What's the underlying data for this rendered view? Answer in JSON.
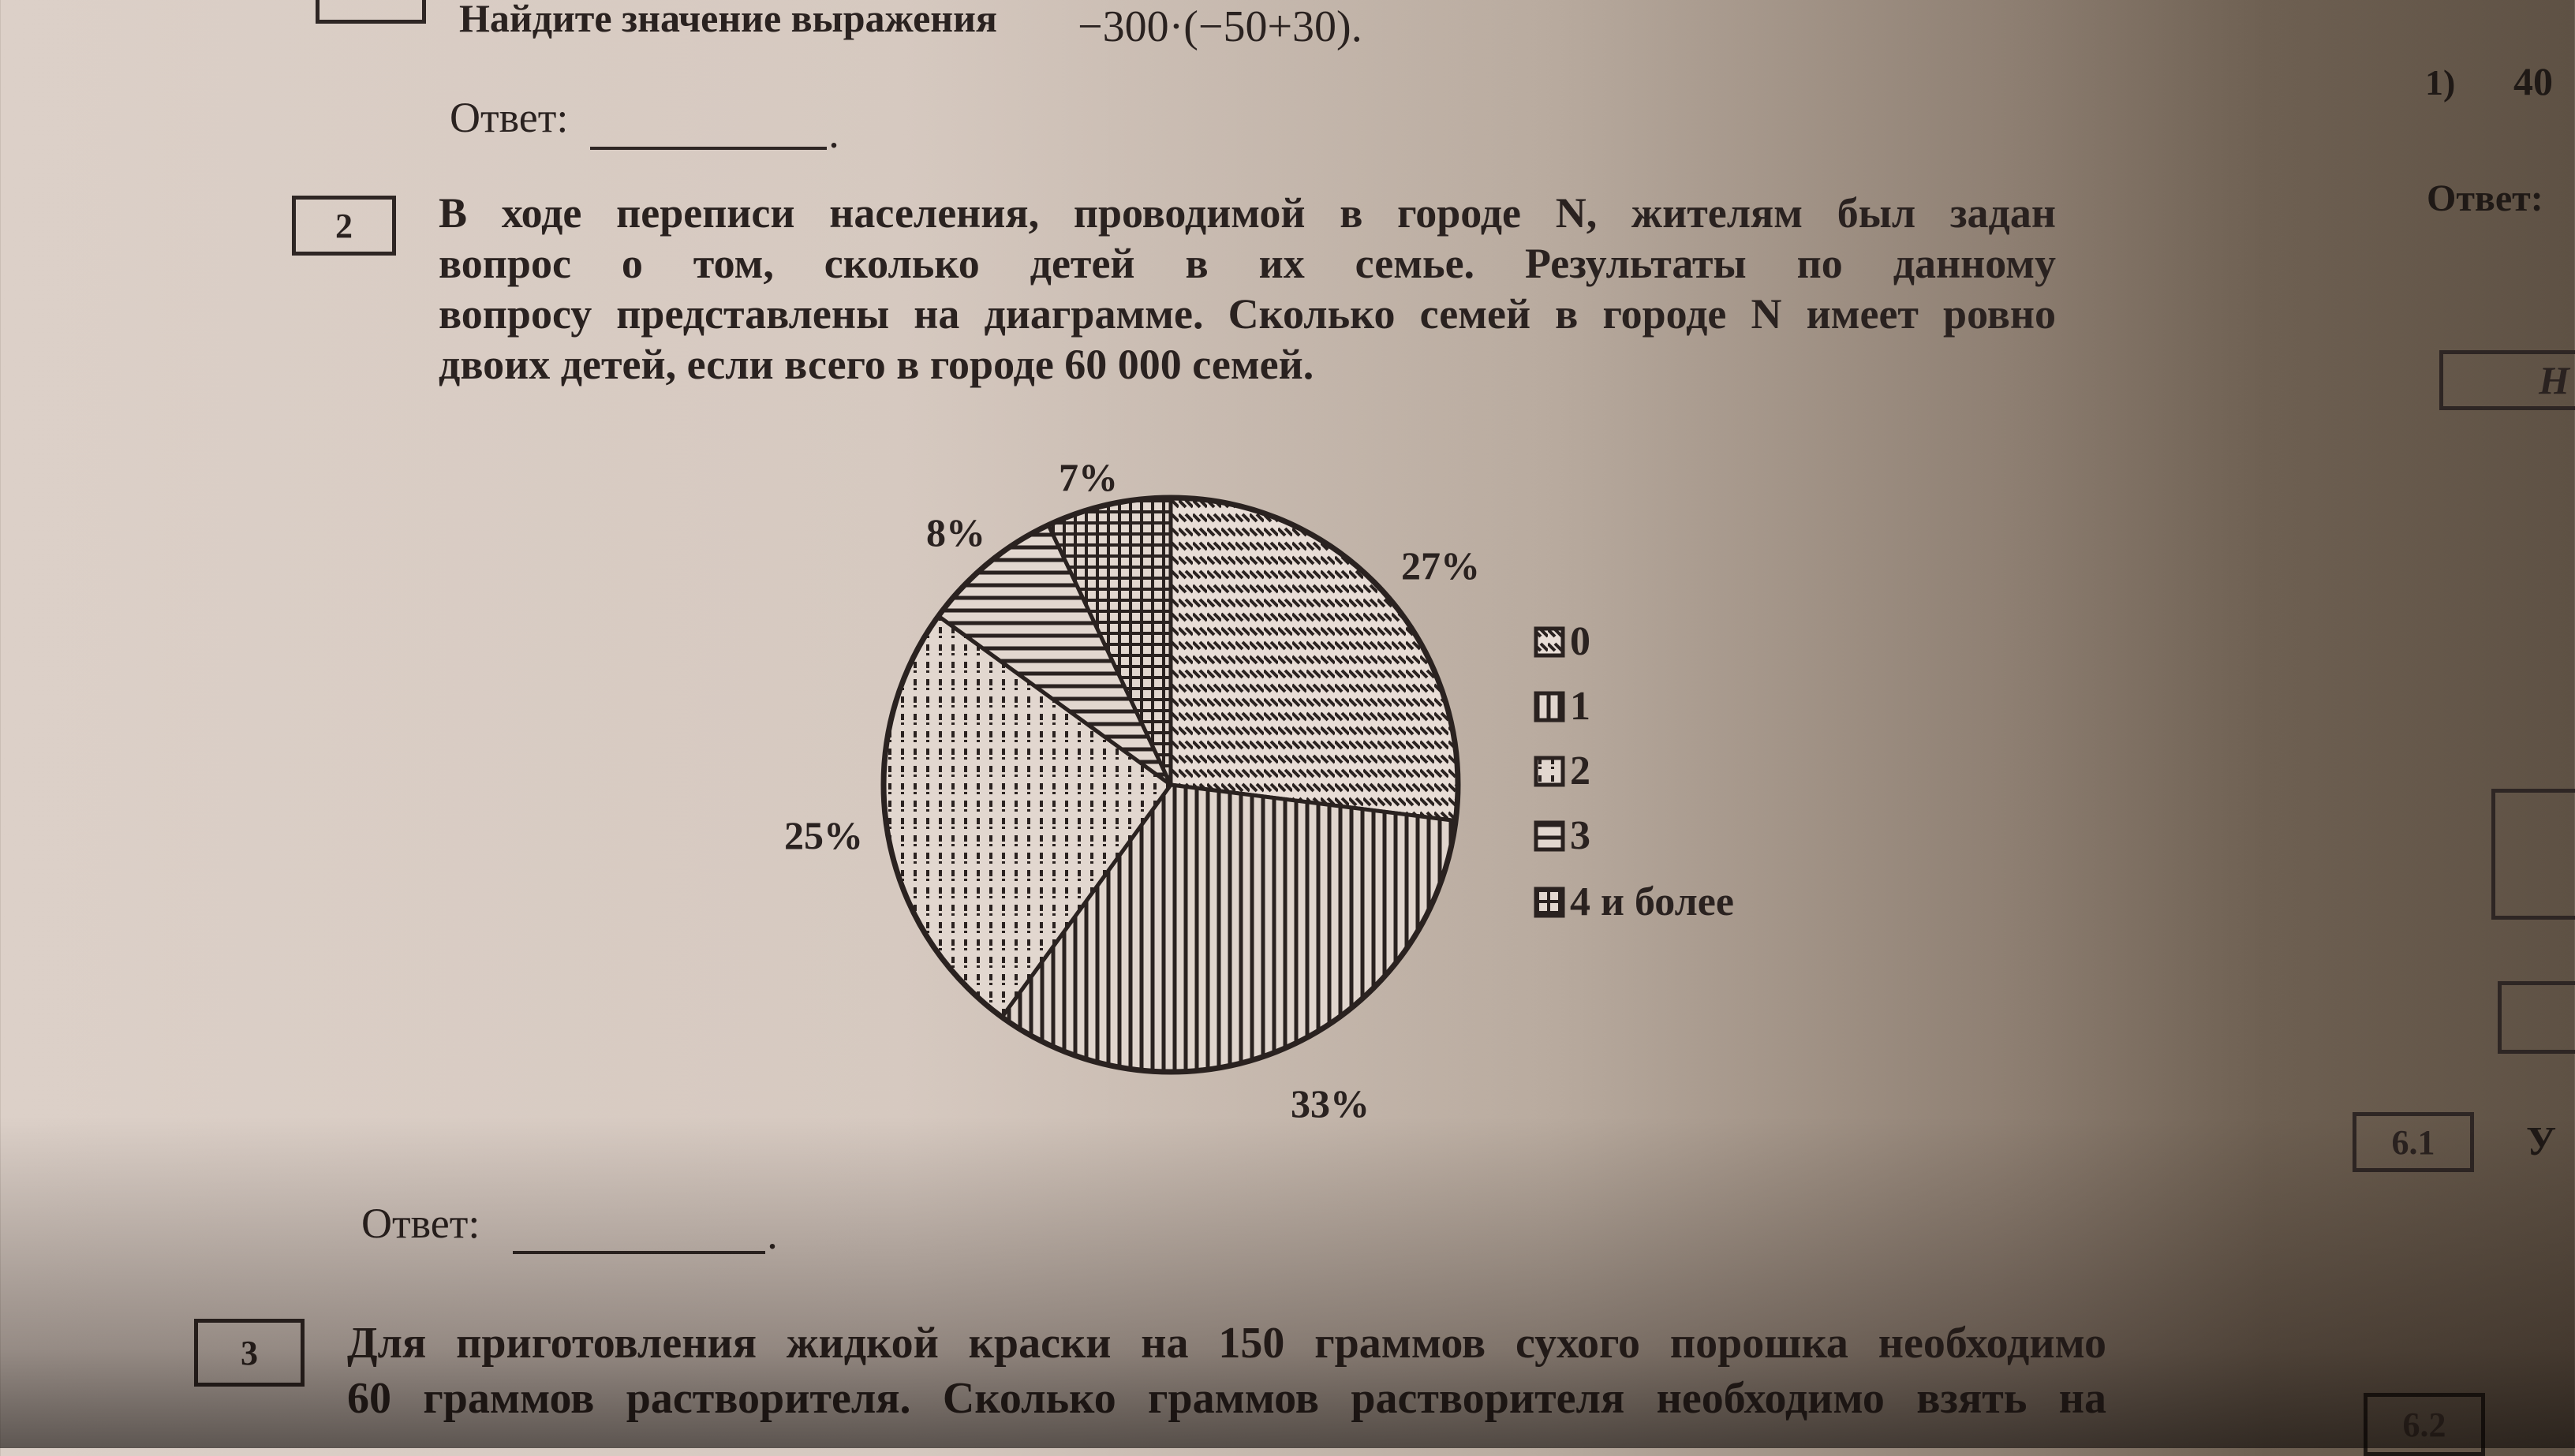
{
  "task1": {
    "prompt": "Найдите значение выражения",
    "expression": "−300·(−50+30).",
    "answer_label": "Ответ:",
    "answer_end": "."
  },
  "task2": {
    "number": "2",
    "lines": [
      "В ходе переписи населения, проводимой в городе N, жителям был задан",
      "вопрос о том, сколько детей в их семье. Результаты по данному",
      "вопросу представлены на диаграмме. Сколько семей в городе N имеет ровно",
      "двоих детей, если всего в городе 60 000 семей."
    ],
    "answer_label": "Ответ:",
    "answer_end": "."
  },
  "task3": {
    "number": "3",
    "lines": [
      "Для приготовления жидкой краски на 150 граммов сухого порошка необходимо",
      "60 граммов растворителя. Сколько граммов растворителя необходимо взять на"
    ]
  },
  "right_page": {
    "option": "1)",
    "option_value": "40",
    "answer_label": "Ответ:",
    "header_fragment": "Н",
    "box_61": "6.1",
    "box_61_text": "У",
    "box_62": "6.2"
  },
  "chart_data": {
    "type": "pie",
    "categories": [
      "0",
      "1",
      "2",
      "3",
      "4 и более"
    ],
    "values": [
      27,
      33,
      25,
      8,
      7
    ],
    "labels": [
      "27%",
      "33%",
      "25%",
      "8%",
      "7%"
    ],
    "patterns": [
      "diagonal-hatch",
      "vertical-lines",
      "dots",
      "horizontal-lines",
      "grid"
    ],
    "legend_position": "right",
    "start": "top, clockwise"
  }
}
